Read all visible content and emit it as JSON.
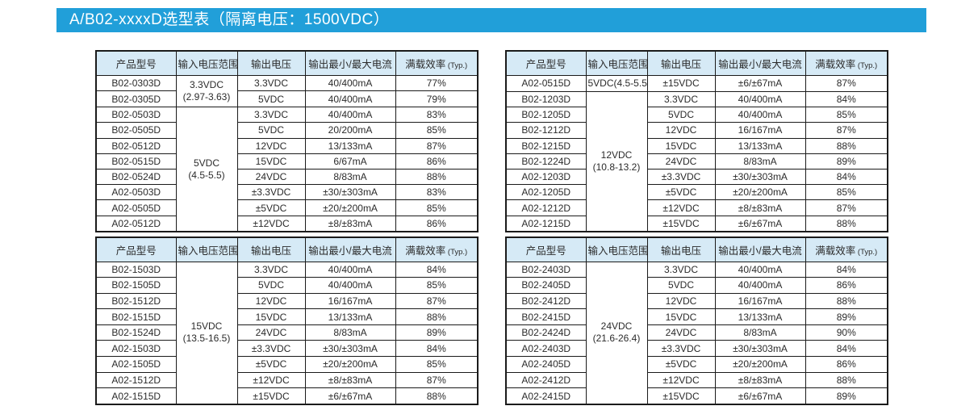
{
  "page": {
    "title": "A/B02-xxxxD选型表（隔离电压：1500VDC）",
    "colors": {
      "title_bar": "#219fd9",
      "table_header_bg": "#d6eaf6",
      "border": "#1b1b1b"
    }
  },
  "headers": [
    {
      "text": "产品型号"
    },
    {
      "text": "输入电压范围"
    },
    {
      "text": "输出电压"
    },
    {
      "text": "输出最小/最大电流"
    },
    {
      "text": "满载效率",
      "sub": "(Typ.)"
    }
  ],
  "tables": [
    {
      "position": "top-left",
      "groups": [
        {
          "input": [
            "3.3VDC",
            "(2.97-3.63)"
          ],
          "rows": [
            {
              "model": "B02-0303D",
              "output": "3.3VDC",
              "current": "40/400mA",
              "eff": "77%"
            },
            {
              "model": "B02-0305D",
              "output": "5VDC",
              "current": "40/400mA",
              "eff": "79%"
            }
          ]
        },
        {
          "input": [
            "5VDC",
            "(4.5-5.5)"
          ],
          "rows": [
            {
              "model": "B02-0503D",
              "output": "3.3VDC",
              "current": "40/400mA",
              "eff": "83%"
            },
            {
              "model": "B02-0505D",
              "output": "5VDC",
              "current": "20/200mA",
              "eff": "85%"
            },
            {
              "model": "B02-0512D",
              "output": "12VDC",
              "current": "13/133mA",
              "eff": "87%"
            },
            {
              "model": "B02-0515D",
              "output": "15VDC",
              "current": "6/67mA",
              "eff": "86%"
            },
            {
              "model": "B02-0524D",
              "output": "24VDC",
              "current": "8/83mA",
              "eff": "88%"
            },
            {
              "model": "A02-0503D",
              "output": "±3.3VDC",
              "current": "±30/±303mA",
              "eff": "83%"
            },
            {
              "model": "A02-0505D",
              "output": "±5VDC",
              "current": "±20/±200mA",
              "eff": "85%"
            },
            {
              "model": "A02-0512D",
              "output": "±12VDC",
              "current": "±8/±83mA",
              "eff": "86%"
            }
          ]
        }
      ]
    },
    {
      "position": "top-right",
      "groups": [
        {
          "input": [
            "5VDC(4.5-5.5)"
          ],
          "rows": [
            {
              "model": "A02-0515D",
              "output": "±15VDC",
              "current": "±6/±67mA",
              "eff": "87%"
            }
          ]
        },
        {
          "input": [
            "12VDC",
            "(10.8-13.2)"
          ],
          "rows": [
            {
              "model": "B02-1203D",
              "output": "3.3VDC",
              "current": "40/400mA",
              "eff": "84%"
            },
            {
              "model": "B02-1205D",
              "output": "5VDC",
              "current": "40/400mA",
              "eff": "85%"
            },
            {
              "model": "B02-1212D",
              "output": "12VDC",
              "current": "16/167mA",
              "eff": "87%"
            },
            {
              "model": "B02-1215D",
              "output": "15VDC",
              "current": "13/133mA",
              "eff": "88%"
            },
            {
              "model": "B02-1224D",
              "output": "24VDC",
              "current": "8/83mA",
              "eff": "89%"
            },
            {
              "model": "A02-1203D",
              "output": "±3.3VDC",
              "current": "±30/±303mA",
              "eff": "84%"
            },
            {
              "model": "A02-1205D",
              "output": "±5VDC",
              "current": "±20/±200mA",
              "eff": "85%"
            },
            {
              "model": "A02-1212D",
              "output": "±12VDC",
              "current": "±8/±83mA",
              "eff": "87%"
            },
            {
              "model": "A02-1215D",
              "output": "±15VDC",
              "current": "±6/±67mA",
              "eff": "88%"
            }
          ]
        }
      ]
    },
    {
      "position": "bottom-left",
      "groups": [
        {
          "input": [
            "15VDC",
            "(13.5-16.5)"
          ],
          "rows": [
            {
              "model": "B02-1503D",
              "output": "3.3VDC",
              "current": "40/400mA",
              "eff": "84%"
            },
            {
              "model": "B02-1505D",
              "output": "5VDC",
              "current": "40/400mA",
              "eff": "85%"
            },
            {
              "model": "B02-1512D",
              "output": "12VDC",
              "current": "16/167mA",
              "eff": "87%"
            },
            {
              "model": "B02-1515D",
              "output": "15VDC",
              "current": "13/133mA",
              "eff": "88%"
            },
            {
              "model": "B02-1524D",
              "output": "24VDC",
              "current": "8/83mA",
              "eff": "89%"
            },
            {
              "model": "A02-1503D",
              "output": "±3.3VDC",
              "current": "±30/±303mA",
              "eff": "84%"
            },
            {
              "model": "A02-1505D",
              "output": "±5VDC",
              "current": "±20/±200mA",
              "eff": "85%"
            },
            {
              "model": "A02-1512D",
              "output": "±12VDC",
              "current": "±8/±83mA",
              "eff": "87%"
            },
            {
              "model": "A02-1515D",
              "output": "±15VDC",
              "current": "±6/±67mA",
              "eff": "88%"
            }
          ]
        }
      ]
    },
    {
      "position": "bottom-right",
      "groups": [
        {
          "input": [
            "24VDC",
            "(21.6-26.4)"
          ],
          "rows": [
            {
              "model": "B02-2403D",
              "output": "3.3VDC",
              "current": "40/400mA",
              "eff": "84%"
            },
            {
              "model": "B02-2405D",
              "output": "5VDC",
              "current": "40/400mA",
              "eff": "86%"
            },
            {
              "model": "B02-2412D",
              "output": "12VDC",
              "current": "16/167mA",
              "eff": "88%"
            },
            {
              "model": "B02-2415D",
              "output": "15VDC",
              "current": "13/133mA",
              "eff": "89%"
            },
            {
              "model": "B02-2424D",
              "output": "24VDC",
              "current": "8/83mA",
              "eff": "90%"
            },
            {
              "model": "A02-2403D",
              "output": "±3.3VDC",
              "current": "±30/±303mA",
              "eff": "84%"
            },
            {
              "model": "A02-2405D",
              "output": "±5VDC",
              "current": "±20/±200mA",
              "eff": "86%"
            },
            {
              "model": "A02-2412D",
              "output": "±12VDC",
              "current": "±8/±83mA",
              "eff": "88%"
            },
            {
              "model": "A02-2415D",
              "output": "±15VDC",
              "current": "±6/±67mA",
              "eff": "89%"
            }
          ]
        }
      ]
    }
  ]
}
